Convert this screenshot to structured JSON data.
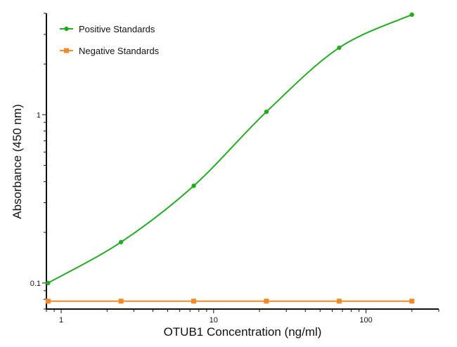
{
  "chart_data": {
    "type": "line",
    "title": "",
    "xlabel": "OTUB1 Concentration (ng/ml)",
    "ylabel": "Absorbance (450 nm)",
    "xscale": "log",
    "yscale": "log",
    "xlim": [
      0.8,
      300
    ],
    "ylim": [
      0.07,
      4
    ],
    "x_ticks": [
      {
        "value": 1,
        "label": "1"
      },
      {
        "value": 10,
        "label": "10"
      },
      {
        "value": 100,
        "label": "100"
      }
    ],
    "y_ticks": [
      {
        "value": 0.1,
        "label": "0.1"
      },
      {
        "value": 1,
        "label": "1"
      }
    ],
    "grid": false,
    "legend": "top-left",
    "series": [
      {
        "name": "Positive Standards",
        "color": "#22aa22",
        "marker": "circle",
        "fit": "smooth",
        "x": [
          0.82,
          2.47,
          7.41,
          22.2,
          66.7,
          200
        ],
        "y": [
          0.1,
          0.175,
          0.378,
          1.04,
          2.5,
          3.93
        ]
      },
      {
        "name": "Negative Standards",
        "color": "#f08a24",
        "marker": "square",
        "fit": "straight",
        "x": [
          0.82,
          2.47,
          7.41,
          22.2,
          66.7,
          200
        ],
        "y": [
          0.078,
          0.078,
          0.078,
          0.078,
          0.078,
          0.078
        ]
      }
    ]
  }
}
